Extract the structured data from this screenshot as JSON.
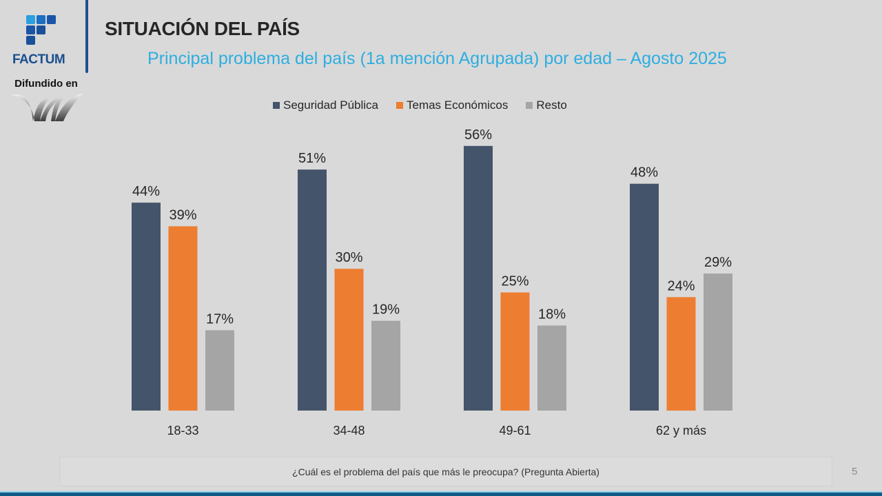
{
  "brand": {
    "name": "FACTUM",
    "disseminated_label": "Difundido en"
  },
  "header": {
    "title": "SITUACIÓN DEL PAÍS",
    "subtitle": "Principal problema del país (1a mención Agrupada) por edad – Agosto 2025"
  },
  "footer": {
    "question": "¿Cuál es el problema del país que más le preocupa? (Pregunta Abierta)",
    "page_number": "5"
  },
  "colors": {
    "seguridad": "#44546a",
    "economicos": "#ed7d31",
    "resto": "#a5a5a5",
    "title_accent": "#2eaee0",
    "brand_blue": "#1d4f8c"
  },
  "chart_data": {
    "type": "bar",
    "title": "Principal problema del país (1a mención Agrupada) por edad – Agosto 2025",
    "xlabel": "",
    "ylabel": "",
    "ylim": [
      0,
      60
    ],
    "grid": false,
    "legend_position": "top",
    "categories": [
      "18-33",
      "34-48",
      "49-61",
      "62 y más"
    ],
    "series": [
      {
        "name": "Seguridad Pública",
        "color": "#44546a",
        "values": [
          44,
          51,
          56,
          48
        ]
      },
      {
        "name": "Temas Económicos",
        "color": "#ed7d31",
        "values": [
          39,
          30,
          25,
          24
        ]
      },
      {
        "name": "Resto",
        "color": "#a5a5a5",
        "values": [
          17,
          19,
          18,
          29
        ]
      }
    ],
    "value_suffix": "%"
  }
}
